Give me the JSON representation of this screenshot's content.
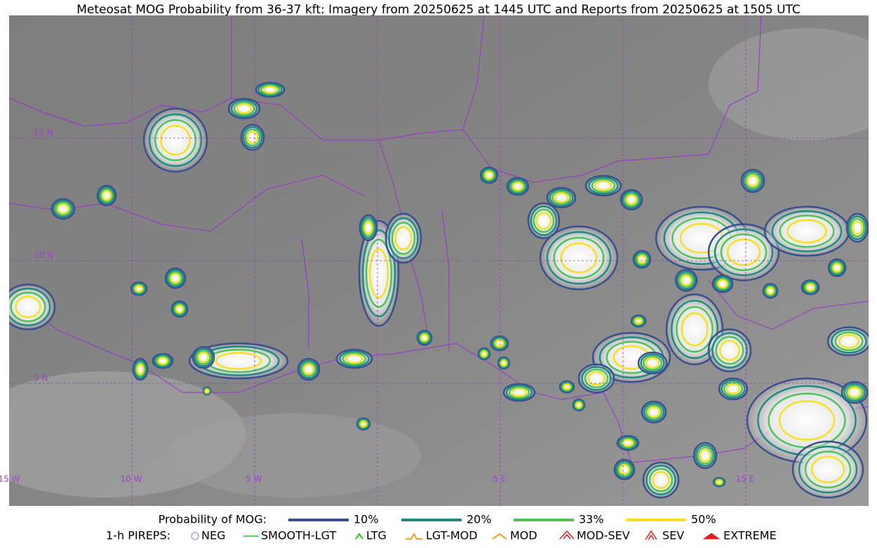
{
  "title": "Meteosat MOG Probability from 36-37 kft: Imagery from 20250625 at 1445 UTC and Reports from 20250625 at 1505 UTC",
  "map": {
    "lat_labels": [
      "15 N",
      "10 N",
      "5 N"
    ],
    "lon_labels": [
      "15 W",
      "10 W",
      "5 W",
      "5 E",
      "15 E"
    ]
  },
  "legend": {
    "probability": {
      "label": "Probability of MOG:",
      "items": [
        {
          "label": "10%",
          "color": "#3a4f8e"
        },
        {
          "label": "20%",
          "color": "#1e8b83"
        },
        {
          "label": "33%",
          "color": "#4ec35c"
        },
        {
          "label": "50%",
          "color": "#f6e21c"
        }
      ]
    },
    "pireps": {
      "label": "1-h PIREPS:",
      "items": [
        {
          "label": "NEG",
          "color": "#b9b4f0"
        },
        {
          "label": "SMOOTH-LGT",
          "color": "#22cc22"
        },
        {
          "label": "LTG",
          "color": "#22cc22"
        },
        {
          "label": "LGT-MOD",
          "color": "#f0a020"
        },
        {
          "label": "MOD",
          "color": "#f0a020"
        },
        {
          "label": "MOD-SEV",
          "color": "#e02020"
        },
        {
          "label": "SEV",
          "color": "#e02020"
        },
        {
          "label": "EXTREME",
          "color": "#e02020"
        }
      ]
    }
  }
}
